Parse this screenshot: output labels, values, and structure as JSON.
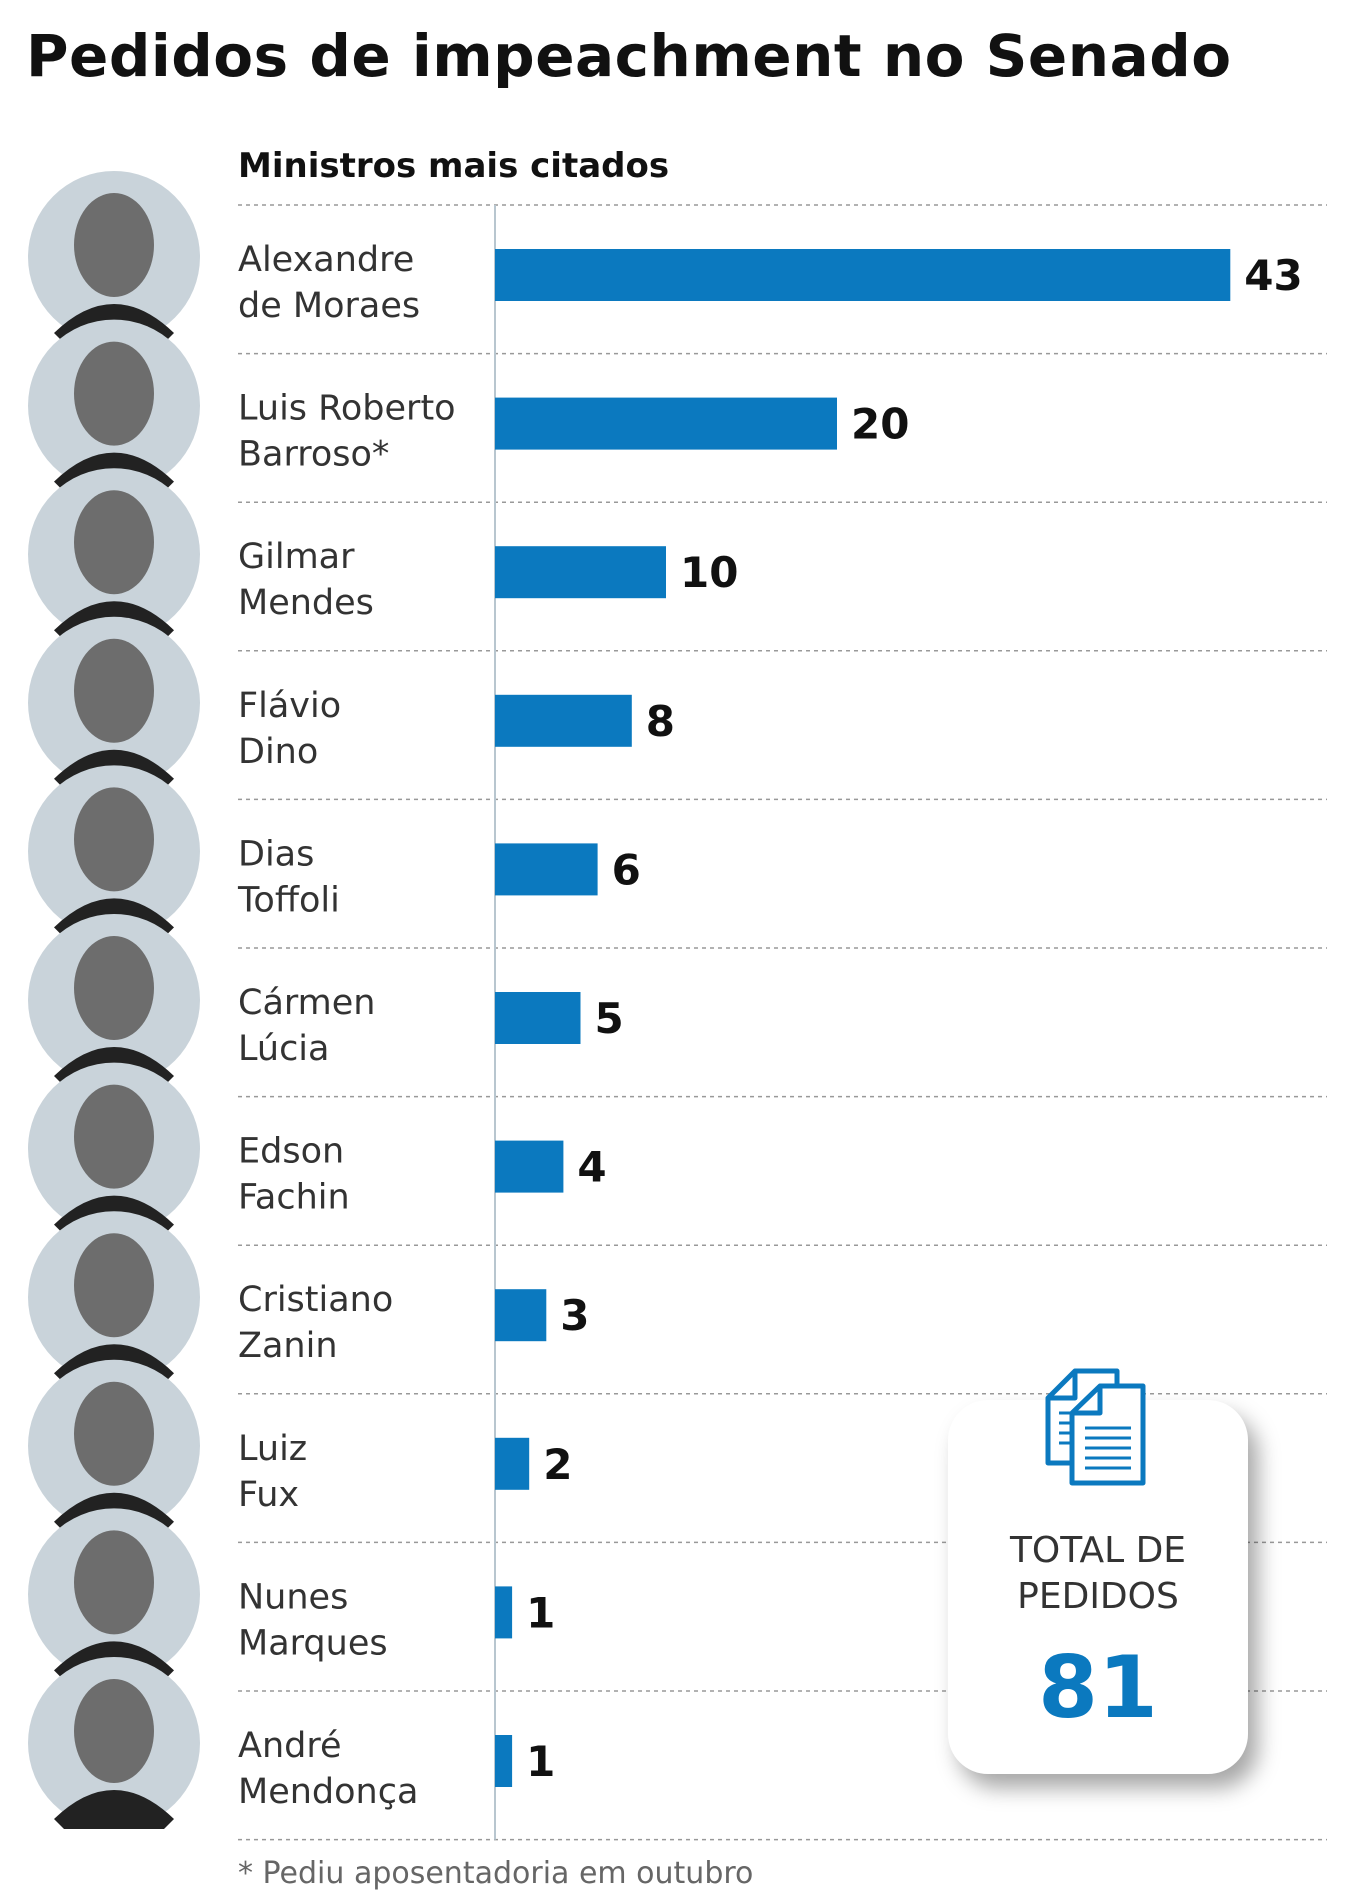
{
  "title": "Pedidos de impeachment no Senado",
  "subtitle": "Ministros mais citados",
  "chart_data": {
    "type": "bar",
    "orientation": "horizontal",
    "categories": [
      [
        "Alexandre",
        "de Moraes"
      ],
      [
        "Luis Roberto",
        "Barroso*"
      ],
      [
        "Gilmar",
        "Mendes"
      ],
      [
        "Flávio",
        "Dino"
      ],
      [
        "Dias",
        "Toffoli"
      ],
      [
        "Cármen",
        "Lúcia"
      ],
      [
        "Edson",
        "Fachin"
      ],
      [
        "Cristiano",
        "Zanin"
      ],
      [
        "Luiz",
        "Fux"
      ],
      [
        "Nunes",
        "Marques"
      ],
      [
        "André",
        "Mendonça"
      ]
    ],
    "values": [
      43,
      20,
      10,
      8,
      6,
      5,
      4,
      3,
      2,
      1,
      1
    ],
    "bar_color": "#0b79bf",
    "data_labels": true,
    "grid": false
  },
  "total": {
    "label_line1": "TOTAL DE",
    "label_line2": "PEDIDOS",
    "value": "81",
    "icon": "documents-icon"
  },
  "footnote": "* Pediu aposentadoria em outubro",
  "colors": {
    "accent": "#0b79bf",
    "photo_bg": "#c9d3da"
  }
}
